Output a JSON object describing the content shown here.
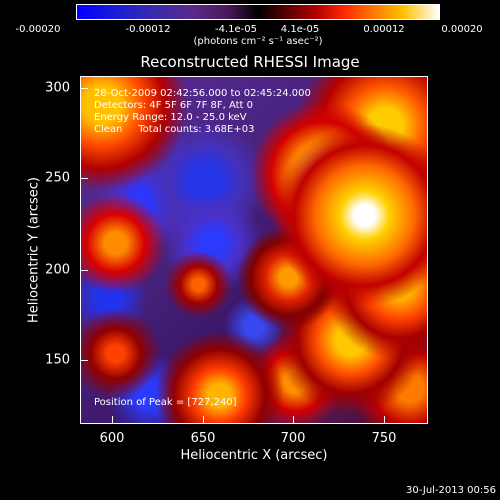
{
  "colorbar": {
    "ticks": [
      "-0.00020",
      "-0.00012",
      "-4.1e-05",
      "4.1e-05",
      "0.00012",
      "0.00020"
    ],
    "unit_label": "(photons cm⁻² s⁻¹ asec⁻²)",
    "colors": {
      "negative": "#0000ff",
      "zero": "#000000",
      "positive": "#ffffff"
    }
  },
  "title": "Reconstructed RHESSI Image",
  "overlay": {
    "time_range": "28-Oct-2009 02:42:56.000 to 02:45:24.000",
    "detectors": "Detectors: 4F 5F 6F 7F 8F, Att 0",
    "energy_range": "Energy Range: 12.0 - 25.0 keV",
    "method_counts": "Clean     Total counts: 3.68E+03",
    "peak": "Position of Peak = [727,240]"
  },
  "axes": {
    "x_label": "Heliocentric X (arcsec)",
    "y_label": "Heliocentric Y (arcsec)",
    "x_ticks": [
      "600",
      "650",
      "700",
      "750"
    ],
    "y_ticks": [
      "150",
      "200",
      "250",
      "300"
    ]
  },
  "footer": {
    "timestamp": "30-Jul-2013 00:56"
  }
}
